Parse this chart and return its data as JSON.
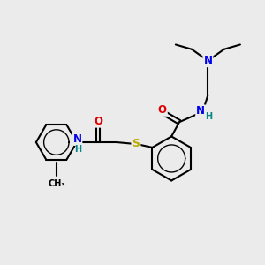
{
  "bg_color": "#ebebeb",
  "atom_colors": {
    "C": "#000000",
    "N": "#0000ee",
    "O": "#dd0000",
    "S": "#bbaa00",
    "H": "#008888"
  },
  "bond_color": "#000000",
  "bond_width": 1.5
}
